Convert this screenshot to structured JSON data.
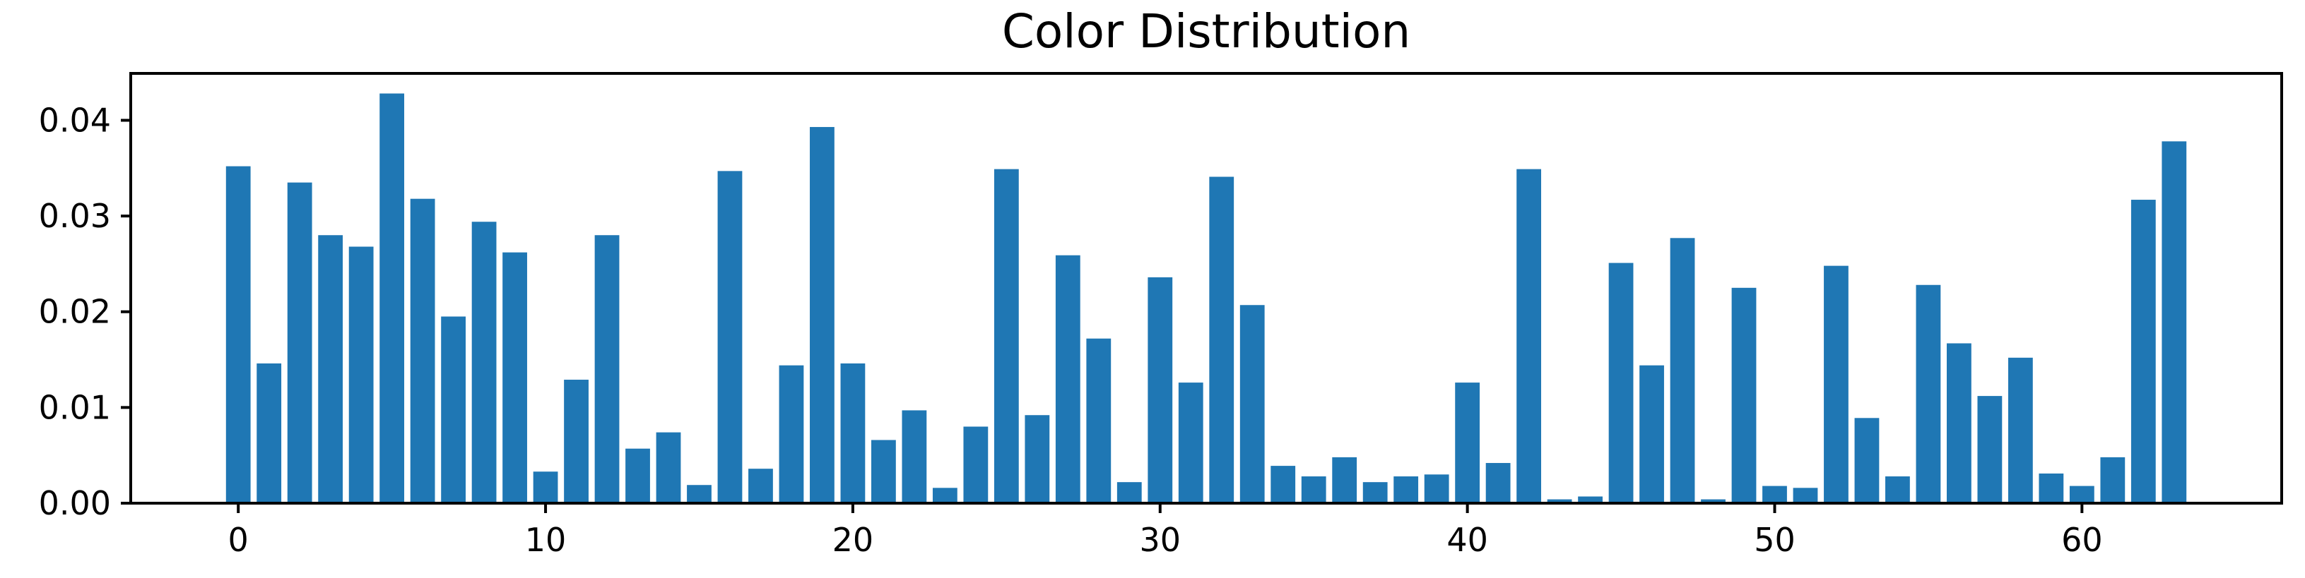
{
  "chart_data": {
    "type": "bar",
    "title": "Color Distribution",
    "xlabel": "",
    "ylabel": "",
    "x": [
      0,
      1,
      2,
      3,
      4,
      5,
      6,
      7,
      8,
      9,
      10,
      11,
      12,
      13,
      14,
      15,
      16,
      17,
      18,
      19,
      20,
      21,
      22,
      23,
      24,
      25,
      26,
      27,
      28,
      29,
      30,
      31,
      32,
      33,
      34,
      35,
      36,
      37,
      38,
      39,
      40,
      41,
      42,
      43,
      44,
      45,
      46,
      47,
      48,
      49,
      50,
      51,
      52,
      53,
      54,
      55,
      56,
      57,
      58,
      59,
      60,
      61,
      62,
      63
    ],
    "values": [
      0.0352,
      0.0146,
      0.0335,
      0.028,
      0.0268,
      0.0428,
      0.0318,
      0.0195,
      0.0294,
      0.0262,
      0.0033,
      0.0129,
      0.028,
      0.0057,
      0.0074,
      0.0019,
      0.0347,
      0.0036,
      0.0144,
      0.0393,
      0.0146,
      0.0066,
      0.0097,
      0.0016,
      0.008,
      0.0349,
      0.0092,
      0.0259,
      0.0172,
      0.0022,
      0.0236,
      0.0126,
      0.0341,
      0.0207,
      0.0039,
      0.0028,
      0.0048,
      0.0022,
      0.0028,
      0.003,
      0.0126,
      0.0042,
      0.0349,
      0.0004,
      0.0007,
      0.0251,
      0.0144,
      0.0277,
      0.0004,
      0.0225,
      0.0018,
      0.0016,
      0.0248,
      0.0089,
      0.0028,
      0.0228,
      0.0167,
      0.0112,
      0.0152,
      0.0031,
      0.0018,
      0.0048,
      0.0317,
      0.0378
    ],
    "xticks": [
      0,
      10,
      20,
      30,
      40,
      50,
      60
    ],
    "yticks": [
      0.0,
      0.01,
      0.02,
      0.03,
      0.04
    ],
    "xtick_labels": [
      "0",
      "10",
      "20",
      "30",
      "40",
      "50",
      "60"
    ],
    "ytick_labels": [
      "0.00",
      "0.01",
      "0.02",
      "0.03",
      "0.04"
    ],
    "xlim": [
      -3.5,
      66.5
    ],
    "ylim": [
      0,
      0.0449
    ],
    "grid": false,
    "bar_color": "#1f77b4"
  }
}
